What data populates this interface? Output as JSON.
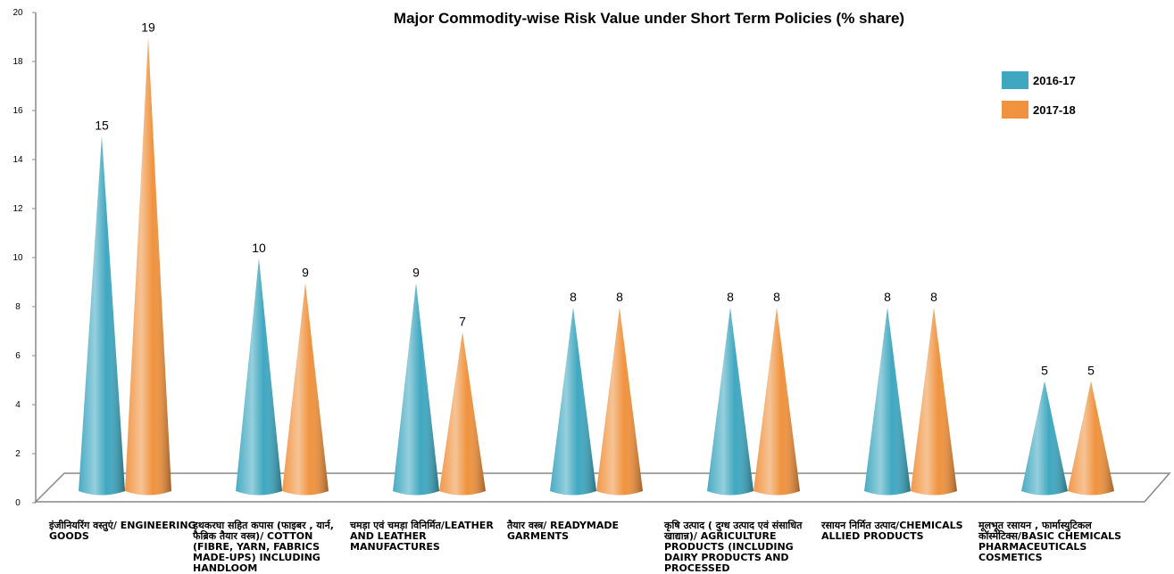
{
  "chart_data": {
    "type": "cone",
    "title": "Major Commodity-wise Risk Value under Short Term Policies  (% share)",
    "categories": [
      "इंजीनियरिंग वस्तुएं/ ENGINEERING GOODS",
      "हथकरघा सहित कपास (फाइबर , यार्न, फैब्रिक तैयार वस्त्र)/ COTTON (FIBRE, YARN, FABRICS MADE-UPS) INCLUDING HANDLOOM",
      "चमड़ा एवं चमड़ा विनिर्मित/LEATHER AND LEATHER MANUFACTURES",
      "तैयार वस्त्र/ READYMADE GARMENTS",
      "कृषि उत्पाद ( दुग्ध उत्पाद एवं संसाधित खाद्यान्न)/ AGRICULTURE PRODUCTS (INCLUDING DAIRY PRODUCTS AND PROCESSED",
      "रसायन निर्मित उत्पाद/CHEMICALS ALLIED PRODUCTS",
      "मूलभूत रसायन , फार्मास्युटिकल कॉस्मेटिक्स/BASIC CHEMICALS PHARMACEUTICALS COSMETICS"
    ],
    "series": [
      {
        "name": "2016-17",
        "color": "#3fa7c0",
        "values": [
          15,
          10,
          9,
          8,
          8,
          8,
          5
        ]
      },
      {
        "name": "2017-18",
        "color": "#f0923e",
        "values": [
          19,
          9,
          7,
          8,
          8,
          8,
          5
        ]
      }
    ],
    "ylim": [
      0,
      20
    ],
    "yticks": [
      0,
      2,
      4,
      6,
      8,
      10,
      12,
      14,
      16,
      18,
      20
    ],
    "legend": "top-right"
  }
}
